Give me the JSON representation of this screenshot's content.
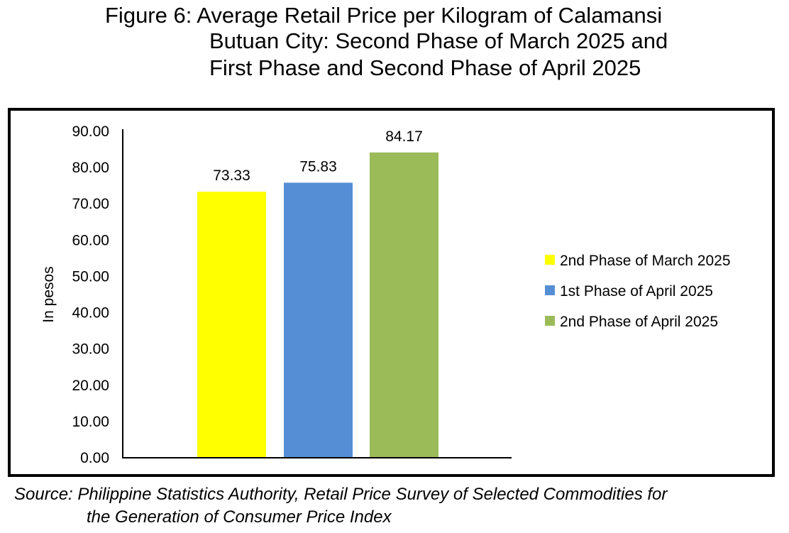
{
  "figure": {
    "title_lines": [
      "Figure 6: Average Retail Price per Kilogram of Calamansi",
      "Butuan City: Second Phase of March 2025 and",
      "First Phase and Second Phase of April 2025"
    ],
    "source_lines": [
      "Source: Philippine Statistics Authority, Retail Price Survey of Selected Commodities for",
      "the Generation of Consumer Price Index"
    ]
  },
  "chart_data": {
    "type": "bar",
    "title": "Figure 6: Average Retail Price per Kilogram of Calamansi Butuan City: Second Phase of March 2025 and First Phase and Second Phase of April 2025",
    "xlabel": "",
    "ylabel": "In pesos",
    "ylim": [
      0,
      90
    ],
    "yticks": [
      "0.00",
      "10.00",
      "20.00",
      "30.00",
      "40.00",
      "50.00",
      "60.00",
      "70.00",
      "80.00",
      "90.00"
    ],
    "grid": false,
    "legend_position": "right",
    "series": [
      {
        "name": "2nd Phase of March 2025",
        "value": 73.33,
        "label": "73.33",
        "color": "#ffff00"
      },
      {
        "name": "1st Phase of April 2025",
        "value": 75.83,
        "label": "75.83",
        "color": "#558ed5"
      },
      {
        "name": "2nd Phase of April 2025",
        "value": 84.17,
        "label": "84.17",
        "color": "#9bbb59"
      }
    ]
  }
}
